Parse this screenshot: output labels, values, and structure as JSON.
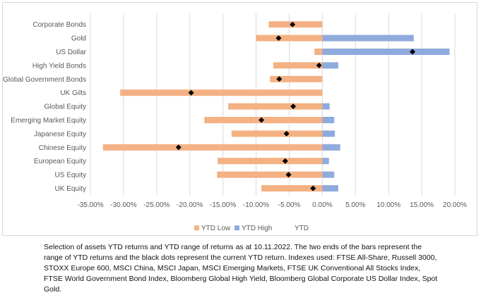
{
  "chart_data": {
    "type": "bar",
    "orientation": "horizontal",
    "categories": [
      "Corporate Bonds",
      "Gold",
      "US Dollar",
      "High Yield Bonds",
      "Global Government Bonds",
      "UK Gilts",
      "Global Equity",
      "Emerging Market Equity",
      "Japanese Equity",
      "Chinese Equity",
      "European Equity",
      "US Equity",
      "UK Equity"
    ],
    "series": [
      {
        "name": "YTD Low",
        "values": [
          -8.1,
          -10.0,
          -1.2,
          -7.4,
          -7.9,
          -30.5,
          -14.2,
          -17.8,
          -13.7,
          -33.1,
          -15.8,
          -15.9,
          -9.2
        ]
      },
      {
        "name": "YTD High",
        "values": [
          0.0,
          13.8,
          19.2,
          2.4,
          0.0,
          0.0,
          1.1,
          1.8,
          1.9,
          2.7,
          1.0,
          1.8,
          2.4
        ]
      },
      {
        "name": "YTD",
        "values": [
          -4.5,
          -6.6,
          13.6,
          -0.5,
          -6.5,
          -19.8,
          -4.4,
          -9.2,
          -5.4,
          -21.7,
          -5.6,
          -5.1,
          -1.4
        ]
      }
    ],
    "xlim": [
      -35,
      20
    ],
    "xticks": [
      "-35.00%",
      "-30.00%",
      "-25.00%",
      "-20.00%",
      "-15.00%",
      "-10.00%",
      "-5.00%",
      "0.00%",
      "5.00%",
      "10.00%",
      "15.00%",
      "20.00%"
    ],
    "xtick_values": [
      -35,
      -30,
      -25,
      -20,
      -15,
      -10,
      -5,
      0,
      5,
      10,
      15,
      20
    ],
    "grid": "vertical",
    "legend_position": "bottom",
    "colors": {
      "low": "#F4B183",
      "high": "#8FAADC",
      "marker": "#000000",
      "grid": "#d9d9d9",
      "text": "#595959"
    }
  },
  "caption": "Selection of assets YTD returns and YTD range of returns as at 10.11.2022.  The two ends of the bars represent the range of YTD returns and the black dots represent the current YTD return. Indexes used: FTSE All-Share, Russell 3000, STOXX Europe 600, MSCI China, MSCI Japan, MSCI Emerging Markets, FTSE UK Conventional All Stocks Index, FTSE World Government Bond Index, Bloomberg Global High Yield, Bloomberg Global Corporate US Dollar Index, Spot Gold."
}
